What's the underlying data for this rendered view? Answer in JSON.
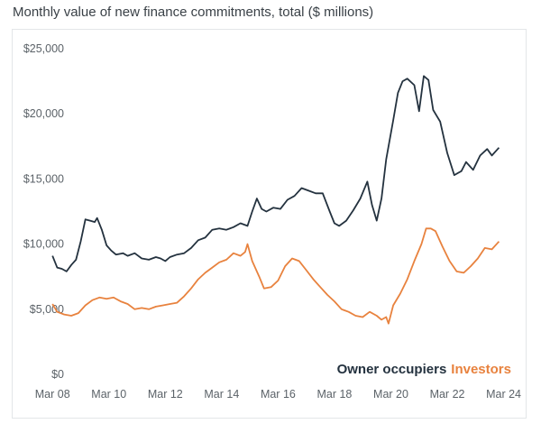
{
  "chart_data": {
    "type": "line",
    "title": "Monthly value of new finance commitments, total ($ millions)",
    "x_ticks": [
      "Mar 08",
      "Mar 10",
      "Mar 12",
      "Mar 14",
      "Mar 16",
      "Mar 18",
      "Mar 20",
      "Mar 22",
      "Mar 24"
    ],
    "y_ticks": [
      "$0",
      "$5,000",
      "$10,000",
      "$15,000",
      "$20,000",
      "$25,000"
    ],
    "xlim": [
      "2008-01",
      "2024-07"
    ],
    "ylim": [
      0,
      25000
    ],
    "grid": false,
    "legend_placement": "bottom-right",
    "series": [
      {
        "name": "Owner occupiers",
        "color": "#24323f",
        "points": [
          [
            "2008-03",
            9100
          ],
          [
            "2008-05",
            8200
          ],
          [
            "2008-07",
            8100
          ],
          [
            "2008-09",
            7900
          ],
          [
            "2008-11",
            8400
          ],
          [
            "2009-01",
            8800
          ],
          [
            "2009-03",
            10200
          ],
          [
            "2009-05",
            11900
          ],
          [
            "2009-07",
            11800
          ],
          [
            "2009-09",
            11700
          ],
          [
            "2009-10",
            12000
          ],
          [
            "2009-12",
            11100
          ],
          [
            "2010-02",
            9900
          ],
          [
            "2010-04",
            9500
          ],
          [
            "2010-06",
            9200
          ],
          [
            "2010-09",
            9300
          ],
          [
            "2010-11",
            9100
          ],
          [
            "2011-02",
            9300
          ],
          [
            "2011-05",
            8900
          ],
          [
            "2011-08",
            8800
          ],
          [
            "2011-11",
            9000
          ],
          [
            "2012-01",
            8900
          ],
          [
            "2012-03",
            8700
          ],
          [
            "2012-05",
            9000
          ],
          [
            "2012-08",
            9200
          ],
          [
            "2012-11",
            9300
          ],
          [
            "2013-02",
            9700
          ],
          [
            "2013-05",
            10300
          ],
          [
            "2013-08",
            10500
          ],
          [
            "2013-11",
            11100
          ],
          [
            "2014-02",
            11200
          ],
          [
            "2014-05",
            11100
          ],
          [
            "2014-08",
            11300
          ],
          [
            "2014-11",
            11600
          ],
          [
            "2015-02",
            11400
          ],
          [
            "2015-04",
            12500
          ],
          [
            "2015-06",
            13500
          ],
          [
            "2015-08",
            12700
          ],
          [
            "2015-10",
            12500
          ],
          [
            "2016-01",
            12800
          ],
          [
            "2016-04",
            12700
          ],
          [
            "2016-07",
            13400
          ],
          [
            "2016-10",
            13700
          ],
          [
            "2017-01",
            14300
          ],
          [
            "2017-04",
            14100
          ],
          [
            "2017-07",
            13900
          ],
          [
            "2017-10",
            13900
          ],
          [
            "2018-01",
            12500
          ],
          [
            "2018-03",
            11600
          ],
          [
            "2018-05",
            11400
          ],
          [
            "2018-08",
            11800
          ],
          [
            "2018-11",
            12600
          ],
          [
            "2019-02",
            13500
          ],
          [
            "2019-05",
            14800
          ],
          [
            "2019-07",
            13000
          ],
          [
            "2019-09",
            11800
          ],
          [
            "2019-11",
            13500
          ],
          [
            "2020-01",
            16500
          ],
          [
            "2020-04",
            19500
          ],
          [
            "2020-06",
            21600
          ],
          [
            "2020-08",
            22500
          ],
          [
            "2020-10",
            22700
          ],
          [
            "2021-01",
            22200
          ],
          [
            "2021-03",
            20200
          ],
          [
            "2021-05",
            22900
          ],
          [
            "2021-07",
            22600
          ],
          [
            "2021-09",
            20300
          ],
          [
            "2021-12",
            19400
          ],
          [
            "2022-03",
            17000
          ],
          [
            "2022-06",
            15300
          ],
          [
            "2022-09",
            15600
          ],
          [
            "2022-11",
            16300
          ],
          [
            "2023-02",
            15700
          ],
          [
            "2023-05",
            16800
          ],
          [
            "2023-08",
            17300
          ],
          [
            "2023-10",
            16800
          ],
          [
            "2024-01",
            17400
          ]
        ]
      },
      {
        "name": "Investors",
        "color": "#e8823e",
        "points": [
          [
            "2008-03",
            5400
          ],
          [
            "2008-05",
            4800
          ],
          [
            "2008-08",
            4600
          ],
          [
            "2008-11",
            4500
          ],
          [
            "2009-02",
            4700
          ],
          [
            "2009-05",
            5300
          ],
          [
            "2009-08",
            5700
          ],
          [
            "2009-11",
            5900
          ],
          [
            "2010-02",
            5800
          ],
          [
            "2010-05",
            5900
          ],
          [
            "2010-08",
            5600
          ],
          [
            "2010-11",
            5400
          ],
          [
            "2011-02",
            5000
          ],
          [
            "2011-05",
            5100
          ],
          [
            "2011-08",
            5000
          ],
          [
            "2011-11",
            5200
          ],
          [
            "2012-02",
            5300
          ],
          [
            "2012-05",
            5400
          ],
          [
            "2012-08",
            5500
          ],
          [
            "2012-11",
            6000
          ],
          [
            "2013-02",
            6600
          ],
          [
            "2013-05",
            7300
          ],
          [
            "2013-08",
            7800
          ],
          [
            "2013-11",
            8200
          ],
          [
            "2014-02",
            8600
          ],
          [
            "2014-05",
            8800
          ],
          [
            "2014-08",
            9300
          ],
          [
            "2014-11",
            9100
          ],
          [
            "2015-01",
            9400
          ],
          [
            "2015-02",
            10000
          ],
          [
            "2015-04",
            8700
          ],
          [
            "2015-07",
            7500
          ],
          [
            "2015-09",
            6600
          ],
          [
            "2015-12",
            6700
          ],
          [
            "2016-03",
            7200
          ],
          [
            "2016-06",
            8300
          ],
          [
            "2016-09",
            8900
          ],
          [
            "2016-12",
            8700
          ],
          [
            "2017-03",
            8000
          ],
          [
            "2017-06",
            7300
          ],
          [
            "2017-09",
            6700
          ],
          [
            "2017-12",
            6100
          ],
          [
            "2018-03",
            5600
          ],
          [
            "2018-06",
            5000
          ],
          [
            "2018-09",
            4800
          ],
          [
            "2018-12",
            4500
          ],
          [
            "2019-03",
            4400
          ],
          [
            "2019-06",
            4800
          ],
          [
            "2019-09",
            4500
          ],
          [
            "2019-11",
            4200
          ],
          [
            "2020-01",
            4400
          ],
          [
            "2020-02",
            3900
          ],
          [
            "2020-04",
            5300
          ],
          [
            "2020-07",
            6200
          ],
          [
            "2020-10",
            7300
          ],
          [
            "2021-01",
            8700
          ],
          [
            "2021-04",
            10000
          ],
          [
            "2021-06",
            11200
          ],
          [
            "2021-08",
            11200
          ],
          [
            "2021-10",
            11000
          ],
          [
            "2022-01",
            9800
          ],
          [
            "2022-04",
            8700
          ],
          [
            "2022-07",
            7900
          ],
          [
            "2022-10",
            7800
          ],
          [
            "2023-01",
            8300
          ],
          [
            "2023-04",
            8900
          ],
          [
            "2023-07",
            9700
          ],
          [
            "2023-10",
            9600
          ],
          [
            "2024-01",
            10200
          ]
        ]
      }
    ]
  }
}
